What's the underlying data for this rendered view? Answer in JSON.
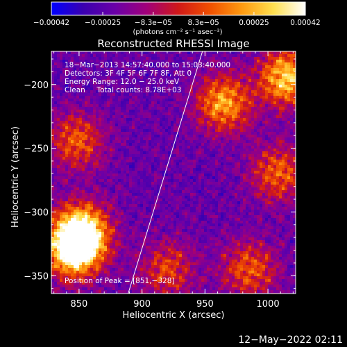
{
  "chart_data": {
    "type": "heatmap",
    "title": "Reconstructed RHESSI Image",
    "xlabel": "Heliocentric X (arcsec)",
    "ylabel": "Heliocentric Y (arcsec)",
    "xlim": [
      828,
      1022
    ],
    "ylim": [
      -364,
      -174
    ],
    "x_ticks": [
      850,
      900,
      950,
      1000
    ],
    "y_ticks": [
      -200,
      -250,
      -300,
      -350
    ],
    "x_tick_labels": [
      "850",
      "900",
      "950",
      "1000"
    ],
    "y_tick_labels": [
      "−200",
      "−250",
      "−300",
      "−350"
    ],
    "colorbar": {
      "range": [
        -0.00042,
        0.00042
      ],
      "ticks": [
        -0.00042,
        -0.00025,
        -8.3e-05,
        8.3e-05,
        0.00025,
        0.00042
      ],
      "tick_labels": [
        "−0.00042",
        "−0.00025",
        "−8.3e−05",
        "8.3e−05",
        "0.00025",
        "0.00042"
      ],
      "units_label": "(photons cm⁻² s⁻¹ asec⁻²)",
      "colors": [
        "#0000ff",
        "#3a00b0",
        "#6a00a8",
        "#a0007a",
        "#d01818",
        "#f05000",
        "#ff9a10",
        "#ffe050",
        "#ffffff"
      ]
    },
    "annotations": {
      "time_range": "18−Mar−2013 14:57:40.000 to 15:03:40.000",
      "detectors": "Detectors: 3F 4F 5F 6F 7F 8F, Att 0",
      "energy_range": "Energy Range: 12.0 − 25.0 keV",
      "method_counts": "Clean     Total counts: 8.78E+03",
      "peak": "Position of Peak = [851,−328]"
    },
    "limb_line": [
      [
        889,
        -364
      ],
      [
        948,
        -174
      ]
    ],
    "intensity_regions": [
      {
        "name": "bright-lower-left",
        "x": 852,
        "y": -315,
        "level": 0.92
      },
      {
        "name": "bright-lower-left-core",
        "x": 846,
        "y": -330,
        "level": 0.98
      },
      {
        "name": "upper-right-ring",
        "x": 965,
        "y": -215,
        "level": 0.75
      },
      {
        "name": "upper-right-edge",
        "x": 1015,
        "y": -195,
        "level": 0.85
      },
      {
        "name": "left-mid-arcs",
        "x": 848,
        "y": -245,
        "level": 0.6
      },
      {
        "name": "right-column",
        "x": 1008,
        "y": -270,
        "level": 0.62
      },
      {
        "name": "bottom-right",
        "x": 985,
        "y": -345,
        "level": 0.6
      },
      {
        "name": "center-bottom-spot",
        "x": 920,
        "y": -345,
        "level": 0.55
      }
    ],
    "grid": false
  },
  "footer": {
    "date": "12−May−2022 02:11"
  }
}
